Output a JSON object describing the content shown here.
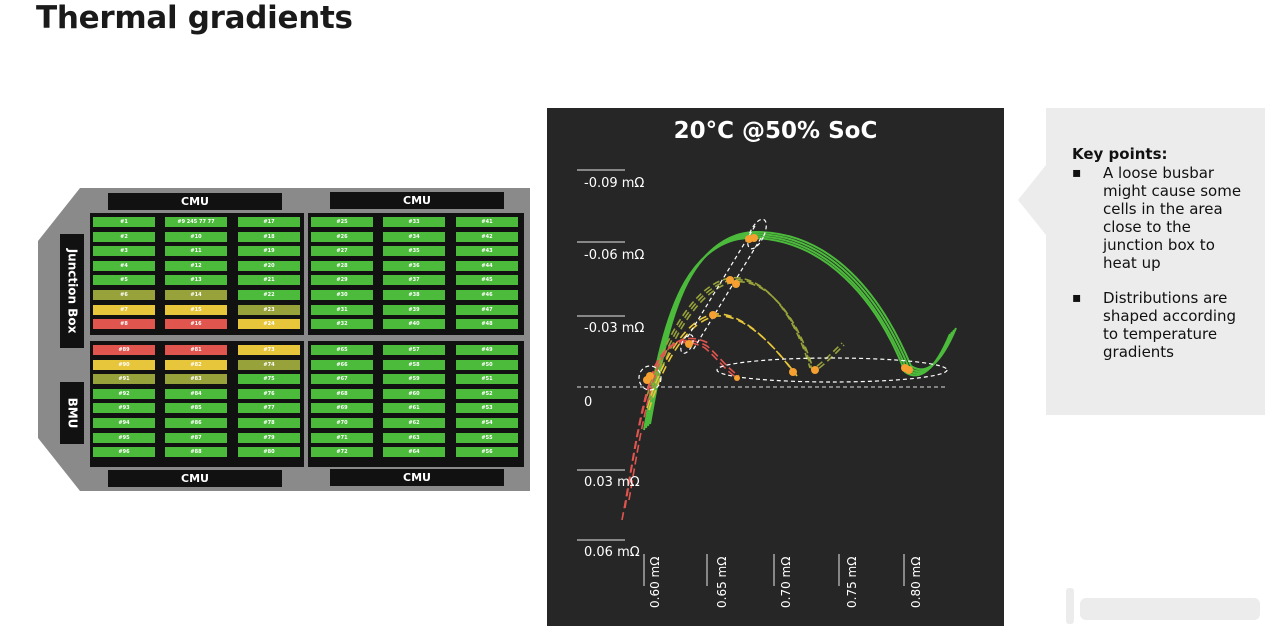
{
  "page": {
    "title": "Thermal gradients"
  },
  "pack": {
    "cmu_label": "CMU",
    "junction_box_label": "Junction Box",
    "bmu_label": "BMU",
    "colors": {
      "green": "#4cbb3c",
      "olive": "#97a23b",
      "yellow": "#e8c63c",
      "red": "#e0554e"
    },
    "modules": [
      {
        "columns": [
          {
            "cells": [
              {
                "label": "#1",
                "color": "green"
              },
              {
                "label": "#2",
                "color": "green"
              },
              {
                "label": "#3",
                "color": "green"
              },
              {
                "label": "#4",
                "color": "green"
              },
              {
                "label": "#5",
                "color": "green"
              },
              {
                "label": "#6",
                "color": "olive"
              },
              {
                "label": "#7",
                "color": "yellow"
              },
              {
                "label": "#8",
                "color": "red"
              }
            ]
          },
          {
            "cells": [
              {
                "label": "#9 245 77 77",
                "color": "green"
              },
              {
                "label": "#10",
                "color": "green"
              },
              {
                "label": "#11",
                "color": "green"
              },
              {
                "label": "#12",
                "color": "green"
              },
              {
                "label": "#13",
                "color": "green"
              },
              {
                "label": "#14",
                "color": "olive"
              },
              {
                "label": "#15",
                "color": "yellow"
              },
              {
                "label": "#16",
                "color": "red"
              }
            ]
          },
          {
            "cells": [
              {
                "label": "#17",
                "color": "green"
              },
              {
                "label": "#18",
                "color": "green"
              },
              {
                "label": "#19",
                "color": "green"
              },
              {
                "label": "#20",
                "color": "green"
              },
              {
                "label": "#21",
                "color": "green"
              },
              {
                "label": "#22",
                "color": "green"
              },
              {
                "label": "#23",
                "color": "olive"
              },
              {
                "label": "#24",
                "color": "yellow"
              }
            ]
          }
        ]
      },
      {
        "columns": [
          {
            "cells": [
              {
                "label": "#25",
                "color": "green"
              },
              {
                "label": "#26",
                "color": "green"
              },
              {
                "label": "#27",
                "color": "green"
              },
              {
                "label": "#28",
                "color": "green"
              },
              {
                "label": "#29",
                "color": "green"
              },
              {
                "label": "#30",
                "color": "green"
              },
              {
                "label": "#31",
                "color": "green"
              },
              {
                "label": "#32",
                "color": "green"
              }
            ]
          },
          {
            "cells": [
              {
                "label": "#33",
                "color": "green"
              },
              {
                "label": "#34",
                "color": "green"
              },
              {
                "label": "#35",
                "color": "green"
              },
              {
                "label": "#36",
                "color": "green"
              },
              {
                "label": "#37",
                "color": "green"
              },
              {
                "label": "#38",
                "color": "green"
              },
              {
                "label": "#39",
                "color": "green"
              },
              {
                "label": "#40",
                "color": "green"
              }
            ]
          },
          {
            "cells": [
              {
                "label": "#41",
                "color": "green"
              },
              {
                "label": "#42",
                "color": "green"
              },
              {
                "label": "#43",
                "color": "green"
              },
              {
                "label": "#44",
                "color": "green"
              },
              {
                "label": "#45",
                "color": "green"
              },
              {
                "label": "#46",
                "color": "green"
              },
              {
                "label": "#47",
                "color": "green"
              },
              {
                "label": "#48",
                "color": "green"
              }
            ]
          }
        ]
      },
      {
        "columns": [
          {
            "cells": [
              {
                "label": "#89",
                "color": "red"
              },
              {
                "label": "#90",
                "color": "yellow"
              },
              {
                "label": "#91",
                "color": "olive"
              },
              {
                "label": "#92",
                "color": "green"
              },
              {
                "label": "#93",
                "color": "green"
              },
              {
                "label": "#94",
                "color": "green"
              },
              {
                "label": "#95",
                "color": "green"
              },
              {
                "label": "#96",
                "color": "green"
              }
            ]
          },
          {
            "cells": [
              {
                "label": "#81",
                "color": "red"
              },
              {
                "label": "#82",
                "color": "yellow"
              },
              {
                "label": "#83",
                "color": "olive"
              },
              {
                "label": "#84",
                "color": "green"
              },
              {
                "label": "#85",
                "color": "green"
              },
              {
                "label": "#86",
                "color": "green"
              },
              {
                "label": "#87",
                "color": "green"
              },
              {
                "label": "#88",
                "color": "green"
              }
            ]
          },
          {
            "cells": [
              {
                "label": "#73",
                "color": "yellow"
              },
              {
                "label": "#74",
                "color": "olive"
              },
              {
                "label": "#75",
                "color": "green"
              },
              {
                "label": "#76",
                "color": "green"
              },
              {
                "label": "#77",
                "color": "green"
              },
              {
                "label": "#78",
                "color": "green"
              },
              {
                "label": "#79",
                "color": "green"
              },
              {
                "label": "#80",
                "color": "green"
              }
            ]
          }
        ]
      },
      {
        "columns": [
          {
            "cells": [
              {
                "label": "#65",
                "color": "green"
              },
              {
                "label": "#66",
                "color": "green"
              },
              {
                "label": "#67",
                "color": "green"
              },
              {
                "label": "#68",
                "color": "green"
              },
              {
                "label": "#69",
                "color": "green"
              },
              {
                "label": "#70",
                "color": "green"
              },
              {
                "label": "#71",
                "color": "green"
              },
              {
                "label": "#72",
                "color": "green"
              }
            ]
          },
          {
            "cells": [
              {
                "label": "#57",
                "color": "green"
              },
              {
                "label": "#58",
                "color": "green"
              },
              {
                "label": "#59",
                "color": "green"
              },
              {
                "label": "#60",
                "color": "green"
              },
              {
                "label": "#61",
                "color": "green"
              },
              {
                "label": "#62",
                "color": "green"
              },
              {
                "label": "#63",
                "color": "green"
              },
              {
                "label": "#64",
                "color": "green"
              }
            ]
          },
          {
            "cells": [
              {
                "label": "#49",
                "color": "green"
              },
              {
                "label": "#50",
                "color": "green"
              },
              {
                "label": "#51",
                "color": "green"
              },
              {
                "label": "#52",
                "color": "green"
              },
              {
                "label": "#53",
                "color": "green"
              },
              {
                "label": "#54",
                "color": "green"
              },
              {
                "label": "#55",
                "color": "green"
              },
              {
                "label": "#56",
                "color": "green"
              }
            ]
          }
        ]
      }
    ]
  },
  "chart": {
    "title": "20°C @50% SoC",
    "y_ticks": [
      "-0.09 mΩ",
      "-0.06 mΩ",
      "-0.03 mΩ",
      "0",
      "0.03 mΩ",
      "0.06 mΩ"
    ],
    "x_ticks": [
      "0.60 mΩ",
      "0.65 mΩ",
      "0.70 mΩ",
      "0.75 mΩ",
      "0.80 mΩ"
    ],
    "colors": {
      "green": "#4cbb3c",
      "olive": "#97a23b",
      "yellow": "#e8c63c",
      "red": "#e0554e",
      "marker": "#f5a030",
      "outline": "#ffffff"
    }
  },
  "key_points": {
    "title": "Key points:",
    "bullet_glyph": "▪",
    "items": [
      "A loose busbar might cause some cells in the area close to the junction box to heat up",
      "Distributions are shaped according to temperature gradients"
    ]
  }
}
